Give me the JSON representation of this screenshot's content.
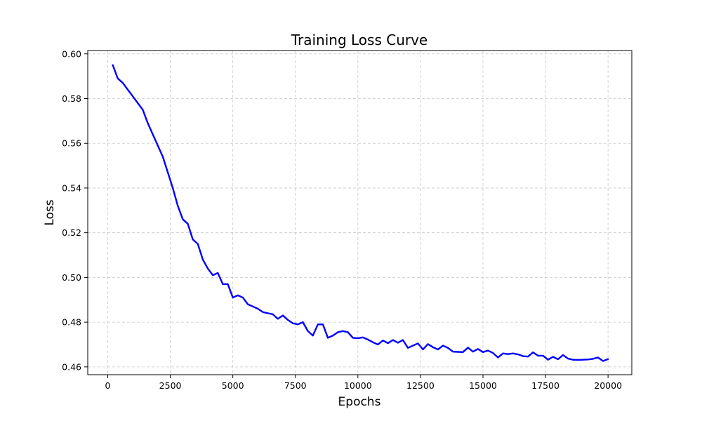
{
  "chart_data": {
    "type": "line",
    "title": "Training Loss Curve",
    "xlabel": "Epochs",
    "ylabel": "Loss",
    "xlim": [
      -800,
      20950
    ],
    "ylim": [
      0.4565,
      0.6015
    ],
    "xticks": [
      0,
      2500,
      5000,
      7500,
      10000,
      12500,
      15000,
      17500,
      20000
    ],
    "xtick_labels": [
      "0",
      "2500",
      "5000",
      "7500",
      "10000",
      "12500",
      "15000",
      "17500",
      "20000"
    ],
    "yticks": [
      0.46,
      0.48,
      0.5,
      0.52,
      0.54,
      0.56,
      0.58,
      0.6
    ],
    "ytick_labels": [
      "0.46",
      "0.48",
      "0.50",
      "0.52",
      "0.54",
      "0.56",
      "0.58",
      "0.60"
    ],
    "grid": true,
    "line_color": "#0000ff",
    "series": [
      {
        "x": [
          200,
          400,
          600,
          800,
          1000,
          1200,
          1400,
          1600,
          1800,
          2000,
          2200,
          2400,
          2600,
          2800,
          3000,
          3200,
          3400,
          3600,
          3800,
          4000,
          4200,
          4400,
          4600,
          4800,
          5000,
          5200,
          5400,
          5600,
          5800,
          6000,
          6200,
          6400,
          6600,
          6800,
          7000,
          7200,
          7400,
          7600,
          7800,
          8000,
          8200,
          8400,
          8600,
          8800,
          9000,
          9200,
          9400,
          9600,
          9800,
          10000,
          10200,
          10400,
          10600,
          10800,
          11000,
          11200,
          11400,
          11600,
          11800,
          12000,
          12200,
          12400,
          12600,
          12800,
          13000,
          13200,
          13400,
          13600,
          13800,
          14000,
          14200,
          14400,
          14600,
          14800,
          15000,
          15200,
          15400,
          15600,
          15800,
          16000,
          16200,
          16400,
          16600,
          16800,
          17000,
          17200,
          17400,
          17600,
          17800,
          18000,
          18200,
          18400,
          18600,
          18800,
          19000,
          19200,
          19400,
          19600,
          19800,
          20000
        ],
        "y": [
          0.595,
          0.589,
          0.587,
          0.584,
          0.581,
          0.578,
          0.575,
          0.569,
          0.564,
          0.559,
          0.554,
          0.547,
          0.54,
          0.532,
          0.526,
          0.524,
          0.517,
          0.515,
          0.508,
          0.504,
          0.501,
          0.502,
          0.497,
          0.497,
          0.491,
          0.492,
          0.491,
          0.488,
          0.487,
          0.486,
          0.4845,
          0.484,
          0.4835,
          0.4815,
          0.483,
          0.481,
          0.4795,
          0.479,
          0.48,
          0.476,
          0.474,
          0.479,
          0.479,
          0.473,
          0.474,
          0.4755,
          0.476,
          0.4755,
          0.473,
          0.4728,
          0.4732,
          0.4722,
          0.471,
          0.47,
          0.4718,
          0.4706,
          0.472,
          0.4708,
          0.472,
          0.4685,
          0.4695,
          0.4705,
          0.4678,
          0.4702,
          0.4688,
          0.4678,
          0.4695,
          0.4685,
          0.4668,
          0.4667,
          0.4666,
          0.4686,
          0.4668,
          0.468,
          0.4666,
          0.4673,
          0.4662,
          0.4642,
          0.466,
          0.4657,
          0.466,
          0.4656,
          0.4648,
          0.4646,
          0.4665,
          0.465,
          0.465,
          0.4632,
          0.4645,
          0.4634,
          0.4653,
          0.4637,
          0.4632,
          0.4631,
          0.4632,
          0.4633,
          0.4636,
          0.4642,
          0.4626,
          0.4635
        ]
      }
    ]
  }
}
